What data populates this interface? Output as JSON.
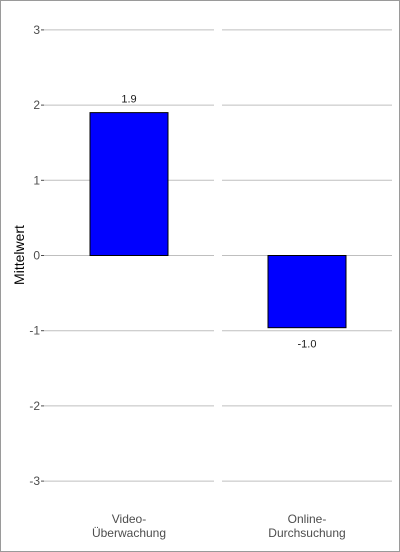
{
  "chart_data": {
    "type": "bar",
    "ylabel": "Mittelwert",
    "xlabel": "",
    "title": "",
    "ylim": [
      -3.3,
      3.3
    ],
    "yticks": [
      3,
      2,
      1,
      0,
      -1,
      -2,
      -3
    ],
    "ytick_labels": [
      "3",
      "2",
      "1",
      "0",
      "-1",
      "-2",
      "-3"
    ],
    "categories": [
      [
        "Video-",
        "Überwachung"
      ],
      [
        "Online-",
        "Durchsuchung"
      ]
    ],
    "values": [
      1.9,
      -0.96
    ],
    "value_labels": [
      "1.9",
      "-1.0"
    ],
    "bar_color": "#0000ff",
    "bar_outline": "#000000",
    "grid": true,
    "grid_color": "#bfbfbf",
    "legend": "none"
  }
}
